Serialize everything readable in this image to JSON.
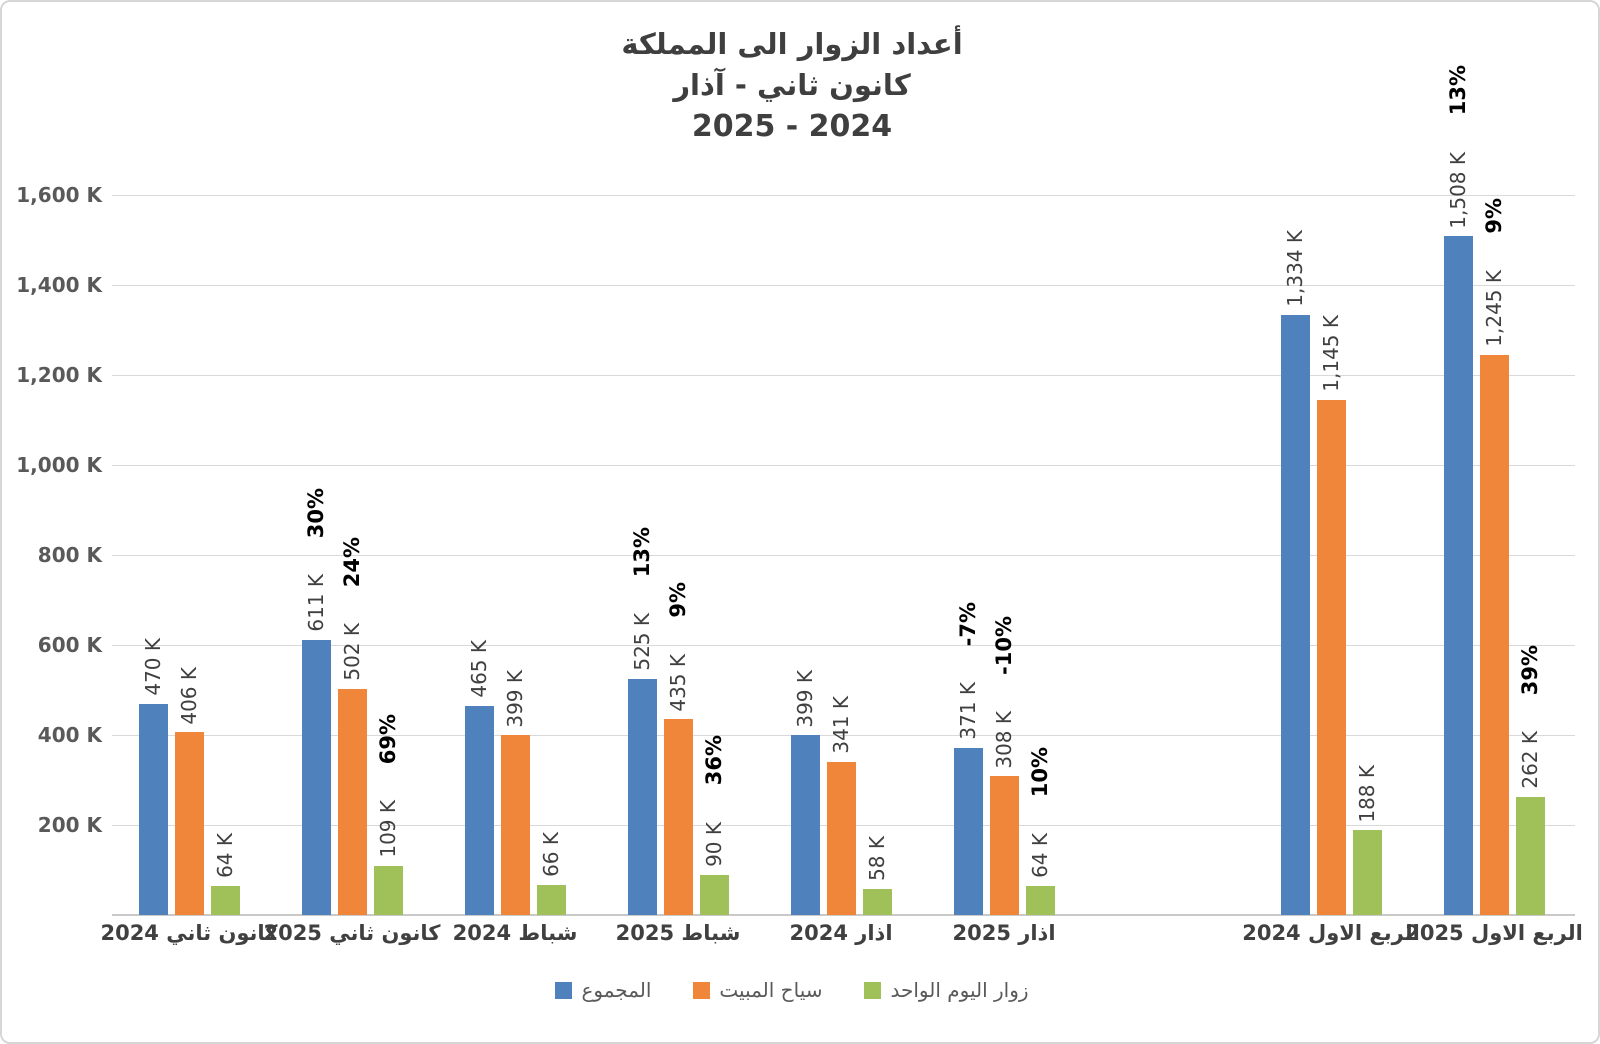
{
  "chart_data": {
    "type": "bar",
    "title_lines": [
      "أعداد الزوار الى المملكة",
      "كانون ثاني - آذار",
      "2025 - 2024"
    ],
    "ylim": [
      0,
      1600
    ],
    "y_unit": "K",
    "yticks_top_to_bottom": [
      "1,600 K",
      "1,400 K",
      "1,200 K",
      "1,000 K",
      "800 K",
      "600 K",
      "400 K",
      "200 K"
    ],
    "grid": true,
    "legend_position": "bottom",
    "categories": [
      "كانون ثاني 2024",
      "كانون ثاني 2025",
      "شباط 2024",
      "شباط 2025",
      "اذار 2024",
      "اذار 2025",
      "الربع الاول 2024",
      "الربع الاول 2025"
    ],
    "series": [
      {
        "key": "total",
        "name": "المجموع",
        "color": "#4F81BD",
        "values": [
          470,
          611,
          465,
          525,
          399,
          371,
          1334,
          1508
        ],
        "value_labels": [
          "470 K",
          "611 K",
          "465 K",
          "525 K",
          "399 K",
          "371 K",
          "1,334 K",
          "1,508 K"
        ],
        "pct_labels": [
          "",
          "30%",
          "",
          "13%",
          "",
          "-7%",
          "",
          "13%"
        ]
      },
      {
        "key": "overnight",
        "name": "سياح المبيت",
        "color": "#F0863A",
        "values": [
          406,
          502,
          399,
          435,
          341,
          308,
          1145,
          1245
        ],
        "value_labels": [
          "406 K",
          "502 K",
          "399 K",
          "435 K",
          "341 K",
          "308 K",
          "1,145 K",
          "1,245 K"
        ],
        "pct_labels": [
          "",
          "24%",
          "",
          "9%",
          "",
          "-10%",
          "",
          "9%"
        ]
      },
      {
        "key": "day-visitors",
        "name": "زوار اليوم الواحد",
        "color": "#A0C15A",
        "values": [
          64,
          109,
          66,
          90,
          58,
          64,
          188,
          262
        ],
        "value_labels": [
          "64 K",
          "109 K",
          "66 K",
          "90 K",
          "58 K",
          "64 K",
          "188 K",
          "262 K"
        ],
        "pct_labels": [
          "",
          "69%",
          "",
          "36%",
          "",
          "10%",
          "",
          "39%"
        ]
      }
    ]
  }
}
